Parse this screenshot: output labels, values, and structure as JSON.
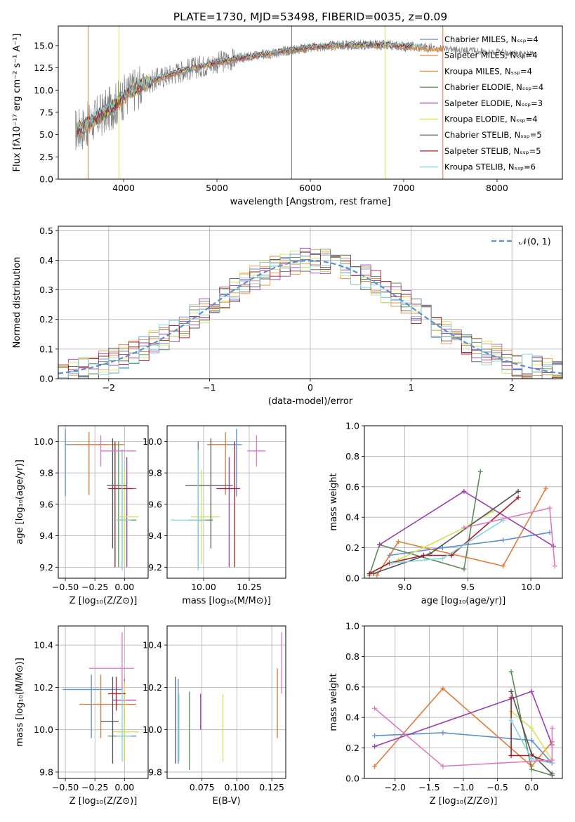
{
  "figure": {
    "title": "PLATE=1730, MJD=53498, FIBERID=0035, z=0.09"
  },
  "chart_data": [
    {
      "id": "spectrum",
      "type": "line",
      "xlabel": "wavelength [Angstrom, rest frame]",
      "ylabel": "Flux [fλ10⁻¹⁷ erg cm⁻² s⁻¹ A⁻¹]",
      "xlim": [
        3300,
        8700
      ],
      "ylim": [
        0,
        17.2
      ],
      "xticks": [
        4000,
        5000,
        6000,
        7000,
        8000
      ],
      "yticks": [
        0.0,
        2.5,
        5.0,
        7.5,
        10.0,
        12.5,
        15.0
      ],
      "grid": false,
      "legend_position": "top-right",
      "legend": [
        {
          "label": "Chabrier MILES, Nₛₛₚ=4",
          "color": "#5b8fd6"
        },
        {
          "label": "Salpeter MILES, Nₛₛₚ=4",
          "color": "#e07b39"
        },
        {
          "label": "Kroupa MILES, Nₛₛₚ=4",
          "color": "#e8913e"
        },
        {
          "label": "Chabrier ELODIE, Nₛₛₚ=4",
          "color": "#5a8a5a"
        },
        {
          "label": "Salpeter ELODIE, Nₛₛₚ=3",
          "color": "#9a3fb0"
        },
        {
          "label": "Kroupa ELODIE, Nₛₛₚ=4",
          "color": "#d4e157"
        },
        {
          "label": "Chabrier STELIB, Nₛₛₚ=5",
          "color": "#555555"
        },
        {
          "label": "Salpeter STELIB, Nₛₛₚ=5",
          "color": "#a31f2a"
        },
        {
          "label": "Kroupa STELIB, Nₛₛₚ=6",
          "color": "#80d4de"
        }
      ],
      "continuum_x": [
        3500,
        3600,
        3700,
        3800,
        3900,
        4000,
        4100,
        4200,
        4400,
        4600,
        4800,
        5000,
        5200,
        5500,
        5800,
        6000,
        6300,
        6600,
        6900,
        7200,
        7500,
        7800,
        8100,
        8400
      ],
      "continuum_y": [
        5.5,
        6.0,
        6.8,
        7.5,
        8.3,
        9.2,
        10.0,
        10.6,
        11.4,
        12.1,
        12.6,
        13.1,
        13.5,
        14.0,
        14.5,
        14.8,
        15.0,
        15.1,
        15.0,
        14.8,
        14.6,
        14.4,
        14.2,
        14.0
      ],
      "line_markers_x": [
        3620,
        3950,
        5800,
        6800,
        7420
      ],
      "line_markers_color": [
        "#e07b39",
        "#d4e157",
        "#777777",
        "#d4e157",
        "#e07b39"
      ]
    },
    {
      "id": "residuals",
      "type": "histogram",
      "xlabel": "(data-model)/error",
      "ylabel": "Normed distribution",
      "xlim": [
        -2.5,
        2.5
      ],
      "ylim": [
        0,
        0.515
      ],
      "xticks": [
        -2,
        -1,
        0,
        1,
        2
      ],
      "yticks": [
        0.0,
        0.1,
        0.2,
        0.3,
        0.4,
        0.5
      ],
      "grid": true,
      "legend_position": "top-right",
      "legend": [
        {
          "label": "𝒩(0, 1)",
          "color": "#5b8fd6"
        }
      ],
      "bin_width": 0.1,
      "reference_curve": "gaussian mean 0, sigma 1"
    },
    {
      "id": "age_vs_Z",
      "type": "errorbar",
      "xlabel": "Z [log₁₀(Z/Z⊙)]",
      "ylabel": "age  [log₁₀(age/yr)]",
      "xlim": [
        -0.56,
        0.2
      ],
      "ylim": [
        9.13,
        10.1
      ],
      "xticks": [
        -0.5,
        -0.25,
        0.0
      ],
      "xticklabels": [
        "−0.50",
        "−0.25",
        "0.00"
      ],
      "yticks": [
        9.2,
        9.4,
        9.6,
        9.8,
        10.0
      ],
      "grid": true,
      "points": [
        {
          "color": "#5b8fd6",
          "x": -0.5,
          "xerr": [
            0.0,
            0.36
          ],
          "y": 9.98,
          "yerr": [
            0.33,
            0.1
          ]
        },
        {
          "color": "#e07b39",
          "x": -0.3,
          "xerr": [
            0.15,
            0.3
          ],
          "y": 9.98,
          "yerr": [
            0.32,
            0.08
          ]
        },
        {
          "color": "#e8913e",
          "x": -0.02,
          "xerr": [
            0.02,
            0.02
          ],
          "y": 9.5,
          "yerr": [
            0.3,
            0.45
          ]
        },
        {
          "color": "#5a8a5a",
          "x": -0.05,
          "xerr": [
            0.0,
            0.15
          ],
          "y": 9.5,
          "yerr": [
            0.3,
            0.5
          ]
        },
        {
          "color": "#9a3fb0",
          "x": 0.02,
          "xerr": [
            0.16,
            0.08
          ],
          "y": 9.7,
          "yerr": [
            0.5,
            0.2
          ]
        },
        {
          "color": "#d4e157",
          "x": 0.0,
          "xerr": [
            0.05,
            0.12
          ],
          "y": 9.52,
          "yerr": [
            0.3,
            0.3
          ]
        },
        {
          "color": "#555555",
          "x": -0.1,
          "xerr": [
            0.05,
            0.12
          ],
          "y": 9.72,
          "yerr": [
            0.4,
            0.3
          ]
        },
        {
          "color": "#a31f2a",
          "x": -0.08,
          "xerr": [
            0.05,
            0.15
          ],
          "y": 9.7,
          "yerr": [
            0.5,
            0.3
          ]
        },
        {
          "color": "#80d4de",
          "x": -0.02,
          "xerr": [
            0.05,
            0.08
          ],
          "y": 9.5,
          "yerr": [
            0.32,
            0.45
          ]
        },
        {
          "color": "#e377c2",
          "x": -0.2,
          "xerr": [
            0.0,
            0.3
          ],
          "y": 9.94,
          "yerr": [
            0.1,
            0.1
          ]
        }
      ]
    },
    {
      "id": "age_vs_mass",
      "type": "errorbar",
      "xlabel": "mass [log₁₀(M/M⊙)]",
      "ylabel": "",
      "xlim": [
        9.8,
        10.45
      ],
      "ylim": [
        9.13,
        10.1
      ],
      "xticks": [
        10.0,
        10.25
      ],
      "xticklabels": [
        "10.00",
        "10.25"
      ],
      "yticks": [
        9.2,
        9.4,
        9.6,
        9.8,
        10.0
      ],
      "grid": true,
      "points": [
        {
          "color": "#5b8fd6",
          "x": 10.18,
          "xerr": [
            0.16,
            0.03
          ],
          "y": 9.98,
          "yerr": [
            0.33,
            0.1
          ]
        },
        {
          "color": "#e07b39",
          "x": 10.12,
          "xerr": [
            0.1,
            0.02
          ],
          "y": 9.98,
          "yerr": [
            0.32,
            0.08
          ]
        },
        {
          "color": "#5a8a5a",
          "x": 9.97,
          "xerr": [
            0.05,
            0.08
          ],
          "y": 9.5,
          "yerr": [
            0.3,
            0.5
          ]
        },
        {
          "color": "#9a3fb0",
          "x": 10.14,
          "xerr": [
            0.06,
            0.04
          ],
          "y": 9.7,
          "yerr": [
            0.5,
            0.2
          ]
        },
        {
          "color": "#d4e157",
          "x": 9.99,
          "xerr": [
            0.06,
            0.1
          ],
          "y": 9.52,
          "yerr": [
            0.3,
            0.3
          ]
        },
        {
          "color": "#555555",
          "x": 10.04,
          "xerr": [
            0.14,
            0.12
          ],
          "y": 9.72,
          "yerr": [
            0.4,
            0.3
          ]
        },
        {
          "color": "#a31f2a",
          "x": 10.17,
          "xerr": [
            0.1,
            0.03
          ],
          "y": 9.7,
          "yerr": [
            0.5,
            0.3
          ]
        },
        {
          "color": "#80d4de",
          "x": 9.97,
          "xerr": [
            0.15,
            0.04
          ],
          "y": 9.5,
          "yerr": [
            0.32,
            0.45
          ]
        },
        {
          "color": "#e377c2",
          "x": 10.29,
          "xerr": [
            0.05,
            0.05
          ],
          "y": 9.94,
          "yerr": [
            0.1,
            0.1
          ]
        }
      ]
    },
    {
      "id": "weight_vs_age",
      "type": "line",
      "xlabel": "age  [log₁₀(age/yr)]",
      "ylabel": "mass weight",
      "xlim": [
        8.68,
        10.25
      ],
      "ylim": [
        0,
        1.0
      ],
      "xticks": [
        9.0,
        9.5,
        10.0
      ],
      "xticklabels": [
        "9.0",
        "9.5",
        "10.0"
      ],
      "yticks": [
        0.0,
        0.2,
        0.4,
        0.6,
        0.8,
        1.0
      ],
      "grid": true,
      "series": [
        {
          "color": "#5b8fd6",
          "x": [
            8.88,
            9.3,
            9.78,
            10.15
          ],
          "y": [
            0.15,
            0.2,
            0.25,
            0.3
          ]
        },
        {
          "color": "#e07b39",
          "x": [
            8.78,
            8.95,
            9.78,
            10.12
          ],
          "y": [
            0.02,
            0.24,
            0.08,
            0.59
          ]
        },
        {
          "color": "#5a8a5a",
          "x": [
            8.72,
            8.8,
            9.47,
            9.6
          ],
          "y": [
            0.02,
            0.22,
            0.06,
            0.7
          ]
        },
        {
          "color": "#9a3fb0",
          "x": [
            8.8,
            9.47,
            10.18
          ],
          "y": [
            0.22,
            0.57,
            0.21
          ]
        },
        {
          "color": "#d4e157",
          "x": [
            8.95,
            9.47,
            9.7
          ],
          "y": [
            0.12,
            0.33,
            0.44
          ]
        },
        {
          "color": "#555555",
          "x": [
            8.75,
            9.2,
            9.9
          ],
          "y": [
            0.03,
            0.16,
            0.57
          ]
        },
        {
          "color": "#a31f2a",
          "x": [
            8.72,
            8.88,
            9.15,
            9.37,
            9.9
          ],
          "y": [
            0.03,
            0.1,
            0.15,
            0.15,
            0.53
          ]
        },
        {
          "color": "#80d4de",
          "x": [
            8.9,
            9.3,
            9.78
          ],
          "y": [
            0.1,
            0.13,
            0.38
          ]
        },
        {
          "color": "#e377c2",
          "x": [
            9.47,
            10.15,
            10.19
          ],
          "y": [
            0.33,
            0.46,
            0.08
          ]
        }
      ]
    },
    {
      "id": "mass_vs_Z",
      "type": "errorbar",
      "xlabel": "Z [log₁₀(Z/Z⊙)]",
      "ylabel": "mass [log₁₀(M/M⊙)]",
      "xlim": [
        -0.56,
        0.2
      ],
      "ylim": [
        9.77,
        10.49
      ],
      "xticks": [
        -0.5,
        -0.25,
        0.0
      ],
      "xticklabels": [
        "−0.50",
        "−0.25",
        "0.00"
      ],
      "yticks": [
        9.8,
        10.0,
        10.2,
        10.4
      ],
      "grid": true,
      "points": [
        {
          "color": "#5b8fd6",
          "x": -0.28,
          "xerr": [
            0.24,
            0.26
          ],
          "y": 10.19,
          "yerr": [
            0.23,
            0.07
          ]
        },
        {
          "color": "#e07b39",
          "x": -0.2,
          "xerr": [
            0.18,
            0.3
          ],
          "y": 10.12,
          "yerr": [
            0.16,
            0.14
          ]
        },
        {
          "color": "#5a8a5a",
          "x": 0.0,
          "xerr": [
            0.14,
            0.1
          ],
          "y": 9.97,
          "yerr": [
            0.12,
            0.2
          ]
        },
        {
          "color": "#9a3fb0",
          "x": 0.0,
          "xerr": [
            0.1,
            0.1
          ],
          "y": 10.14,
          "yerr": [
            0.1,
            0.1
          ]
        },
        {
          "color": "#d4e157",
          "x": 0.0,
          "xerr": [
            0.1,
            0.12
          ],
          "y": 9.99,
          "yerr": [
            0.14,
            0.24
          ]
        },
        {
          "color": "#555555",
          "x": -0.1,
          "xerr": [
            0.1,
            0.05
          ],
          "y": 10.04,
          "yerr": [
            0.2,
            0.21
          ]
        },
        {
          "color": "#a31f2a",
          "x": -0.07,
          "xerr": [
            0.07,
            0.08
          ],
          "y": 10.17,
          "yerr": [
            0.08,
            0.08
          ]
        },
        {
          "color": "#80d4de",
          "x": -0.02,
          "xerr": [
            0.05,
            0.08
          ],
          "y": 9.97,
          "yerr": [
            0.12,
            0.27
          ]
        },
        {
          "color": "#e377c2",
          "x": -0.02,
          "xerr": [
            0.28,
            0.1
          ],
          "y": 10.29,
          "yerr": [
            0.1,
            0.17
          ]
        }
      ]
    },
    {
      "id": "mass_vs_EBV",
      "type": "errorbar",
      "xlabel": "E(B-V)",
      "ylabel": "",
      "xlim": [
        0.05,
        0.135
      ],
      "ylim": [
        9.77,
        10.49
      ],
      "xticks": [
        0.075,
        0.1,
        0.125
      ],
      "xticklabels": [
        "0.075",
        "0.100",
        "0.125"
      ],
      "yticks": [
        9.8,
        10.0,
        10.2,
        10.4
      ],
      "grid": true,
      "points": [
        {
          "color": "#5b8fd6",
          "x": 0.058,
          "xerr": [
            0,
            0
          ],
          "y": 10.04,
          "yerr": [
            0.2,
            0.2
          ]
        },
        {
          "color": "#555555",
          "x": 0.056,
          "xerr": [
            0,
            0
          ],
          "y": 10.04,
          "yerr": [
            0.2,
            0.21
          ]
        },
        {
          "color": "#80d4de",
          "x": 0.0585,
          "xerr": [
            0,
            0
          ],
          "y": 9.97,
          "yerr": [
            0.12,
            0.2
          ]
        },
        {
          "color": "#5a8a5a",
          "x": 0.066,
          "xerr": [
            0,
            0
          ],
          "y": 9.99,
          "yerr": [
            0.18,
            0.19
          ]
        },
        {
          "color": "#9a3fb0",
          "x": 0.074,
          "xerr": [
            0,
            0
          ],
          "y": 10.08,
          "yerr": [
            0.08,
            0.09
          ]
        },
        {
          "color": "#d4e157",
          "x": 0.09,
          "xerr": [
            0,
            0
          ],
          "y": 10.0,
          "yerr": [
            0.15,
            0.17
          ]
        },
        {
          "color": "#e07b39",
          "x": 0.129,
          "xerr": [
            0,
            0
          ],
          "y": 10.12,
          "yerr": [
            0.16,
            0.17
          ]
        },
        {
          "color": "#e377c2",
          "x": 0.132,
          "xerr": [
            0,
            0
          ],
          "y": 10.29,
          "yerr": [
            0.12,
            0.17
          ]
        }
      ]
    },
    {
      "id": "weight_vs_Z",
      "type": "line",
      "xlabel": "Z [log₁₀(Z/Z⊙)]",
      "ylabel": "mass weight",
      "xlim": [
        -2.45,
        0.45
      ],
      "ylim": [
        0,
        1.0
      ],
      "xticks": [
        -2.0,
        -1.5,
        -1.0,
        -0.5,
        0.0
      ],
      "xticklabels": [
        "−2.0",
        "−1.5",
        "−1.0",
        "−0.5",
        "0.0"
      ],
      "yticks": [
        0.0,
        0.2,
        0.4,
        0.6,
        0.8,
        1.0
      ],
      "grid": true,
      "series": [
        {
          "color": "#5b8fd6",
          "x": [
            -2.3,
            -1.3,
            0.0,
            0.3
          ],
          "y": [
            0.28,
            0.3,
            0.25,
            0.1
          ]
        },
        {
          "color": "#e07b39",
          "x": [
            -2.3,
            -1.3,
            0.0,
            0.3
          ],
          "y": [
            0.08,
            0.59,
            0.08,
            0.24
          ]
        },
        {
          "color": "#5a8a5a",
          "x": [
            -0.3,
            0.0,
            0.3
          ],
          "y": [
            0.7,
            0.06,
            0.02
          ]
        },
        {
          "color": "#9a3fb0",
          "x": [
            -2.3,
            0.0,
            0.3
          ],
          "y": [
            0.21,
            0.57,
            0.22
          ]
        },
        {
          "color": "#d4e157",
          "x": [
            -0.3,
            0.0,
            0.3
          ],
          "y": [
            0.44,
            0.33,
            0.12
          ]
        },
        {
          "color": "#555555",
          "x": [
            -0.3,
            0.0,
            0.3
          ],
          "y": [
            0.57,
            0.16,
            0.03
          ]
        },
        {
          "color": "#a31f2a",
          "x": [
            -0.3,
            -0.3,
            0.0,
            0.3
          ],
          "y": [
            0.53,
            0.15,
            0.15,
            0.1
          ]
        },
        {
          "color": "#80d4de",
          "x": [
            -0.3,
            0.0,
            0.3
          ],
          "y": [
            0.38,
            0.13,
            0.1
          ]
        },
        {
          "color": "#e377c2",
          "x": [
            -2.3,
            -1.3,
            0.3,
            0.3
          ],
          "y": [
            0.46,
            0.08,
            0.12,
            0.33
          ]
        }
      ]
    }
  ]
}
